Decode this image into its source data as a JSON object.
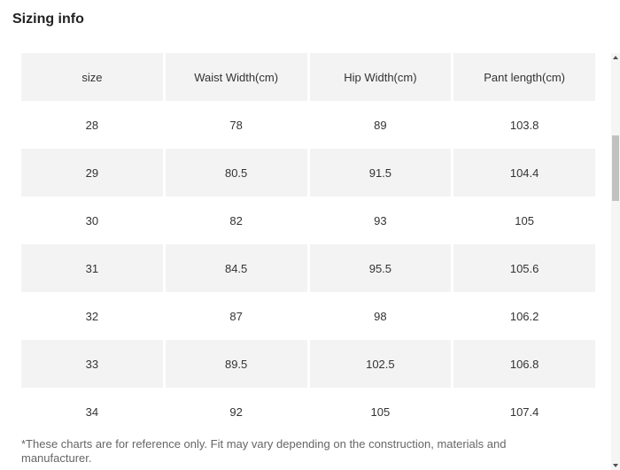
{
  "title": "Sizing info",
  "table": {
    "headers": [
      "size",
      "Waist Width(cm)",
      "Hip Width(cm)",
      "Pant length(cm)"
    ],
    "rows": [
      [
        "28",
        "78",
        "89",
        "103.8"
      ],
      [
        "29",
        "80.5",
        "91.5",
        "104.4"
      ],
      [
        "30",
        "82",
        "93",
        "105"
      ],
      [
        "31",
        "84.5",
        "95.5",
        "105.6"
      ],
      [
        "32",
        "87",
        "98",
        "106.2"
      ],
      [
        "33",
        "89.5",
        "102.5",
        "106.8"
      ],
      [
        "34",
        "92",
        "105",
        "107.4"
      ]
    ]
  },
  "footnote": "*These charts are for reference only. Fit may vary depending on the construction, materials and manufacturer.",
  "colors": {
    "shaded_row": "#f3f3f3",
    "text": "#333333",
    "footnote": "#666666",
    "scroll_thumb": "#c1c1c1"
  }
}
